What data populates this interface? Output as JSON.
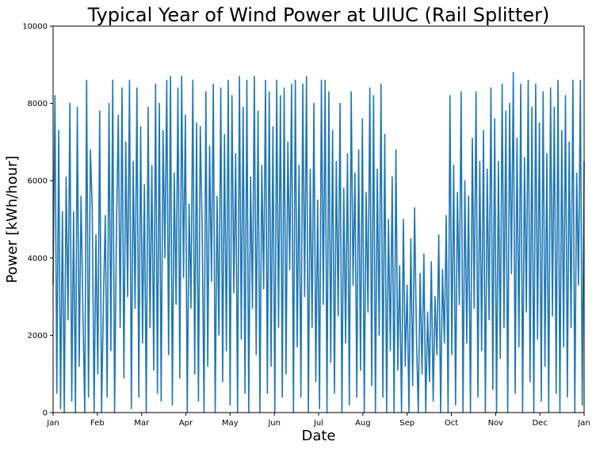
{
  "chart_data": {
    "type": "line",
    "title": "Typical Year of Wind Power at UIUC (Rail Splitter)",
    "xlabel": "Date",
    "ylabel": "Power [kWh/hour]",
    "ylim": [
      0,
      10000
    ],
    "yticks": [
      0,
      2000,
      4000,
      6000,
      8000,
      10000
    ],
    "xticks": [
      "Jan",
      "Feb",
      "Mar",
      "Apr",
      "May",
      "Jun",
      "Jul",
      "Aug",
      "Sep",
      "Oct",
      "Nov",
      "Dec",
      "Jan"
    ],
    "xlim_days": [
      0,
      365
    ],
    "grid": false,
    "legend": "none",
    "series_color": "#1f77b4",
    "series": [
      {
        "values": [
          3300,
          8200,
          500,
          7300,
          100,
          5200,
          0,
          6100,
          2400,
          8000,
          300,
          5200,
          0,
          7900,
          1200,
          5600,
          2600,
          0,
          8600,
          400,
          6800,
          5300,
          0,
          4600,
          1000,
          7800,
          0,
          2800,
          5100,
          400,
          8000,
          1600,
          8600,
          0,
          4700,
          7700,
          2200,
          8400,
          900,
          7000,
          3000,
          8600,
          100,
          6500,
          2700,
          8400,
          400,
          7400,
          1800,
          5900,
          0,
          7900,
          2200,
          6400,
          1100,
          8500,
          500,
          8000,
          300,
          7300,
          4000,
          8600,
          1500,
          8700,
          200,
          6200,
          2800,
          8400,
          900,
          8700,
          3500,
          7700,
          0,
          5400,
          2700,
          8600,
          1000,
          7500,
          300,
          7400,
          4800,
          0,
          8300,
          1200,
          6900,
          3400,
          8500,
          0,
          5600,
          2000,
          8400,
          800,
          7200,
          1600,
          8600,
          200,
          8200,
          3100,
          6700,
          0,
          8700,
          1900,
          7900,
          500,
          8600,
          0,
          6100,
          2700,
          8700,
          1500,
          7800,
          0,
          6400,
          3200,
          8600,
          500,
          8300,
          1200,
          7400,
          0,
          8600,
          2200,
          8200,
          400,
          8400,
          1000,
          7000,
          3700,
          8500,
          0,
          8600,
          1700,
          6400,
          400,
          8500,
          3000,
          8700,
          0,
          6300,
          2200,
          8000,
          800,
          5500,
          100,
          8600,
          2800,
          8600,
          0,
          8300,
          1300,
          7300,
          500,
          6500,
          2500,
          8000,
          0,
          5800,
          1800,
          6700,
          200,
          8300,
          3300,
          6200,
          400,
          6800,
          1100,
          7600,
          0,
          5700,
          2600,
          8400,
          700,
          8200,
          0,
          6300,
          2000,
          8500,
          400,
          7200,
          0,
          5000,
          1600,
          6100,
          0,
          6800,
          1100,
          3800,
          0,
          5000,
          1200,
          3300,
          0,
          4500,
          700,
          5300,
          2000,
          0,
          3600,
          1000,
          4100,
          0,
          2600,
          800,
          3900,
          300,
          3000,
          1500,
          4600,
          0,
          3700,
          1800,
          5100,
          0,
          8200,
          1500,
          6400,
          200,
          5700,
          2800,
          8300,
          0,
          6000,
          1800,
          5600,
          0,
          7100,
          2700,
          8300,
          400,
          6500,
          1600,
          7300,
          0,
          6300,
          2400,
          8400,
          600,
          7600,
          0,
          6500,
          1400,
          8500,
          2200,
          7800,
          0,
          8000,
          3600,
          8800,
          500,
          7100,
          1700,
          8500,
          0,
          6600,
          2600,
          8600,
          800,
          7900,
          0,
          8500,
          1900,
          7500,
          300,
          8300,
          1200,
          6700,
          0,
          8400,
          2500,
          7900,
          500,
          8600,
          0,
          7300,
          1700,
          8200,
          400,
          7000,
          2200,
          8600,
          0,
          6200,
          3300,
          8600,
          200,
          6500
        ]
      }
    ]
  }
}
